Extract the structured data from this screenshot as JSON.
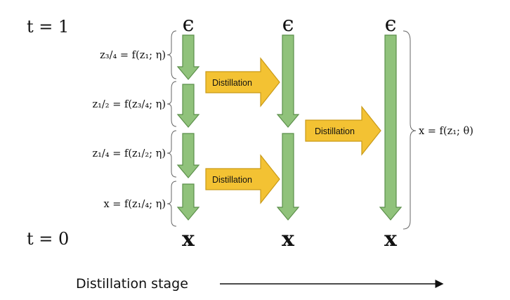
{
  "time_labels": {
    "top": "t = 1",
    "bottom": "t = 0"
  },
  "symbols": {
    "noise": "ϵ",
    "data": "x"
  },
  "step_equations": [
    "z₃/₄ = f(z₁; η)",
    "z₁/₂ = f(z₃/₄; η)",
    "z₁/₄ = f(z₁/₂; η)",
    "x = f(z₁/₄; η)"
  ],
  "distillation_boxes": [
    "Distillation",
    "Distillation",
    "Distillation"
  ],
  "final_equation": "x = f(z₁; θ)",
  "caption": "Distillation stage",
  "colors": {
    "green_arrow": "#90c27b",
    "yellow_arrow": "#f3c233"
  }
}
